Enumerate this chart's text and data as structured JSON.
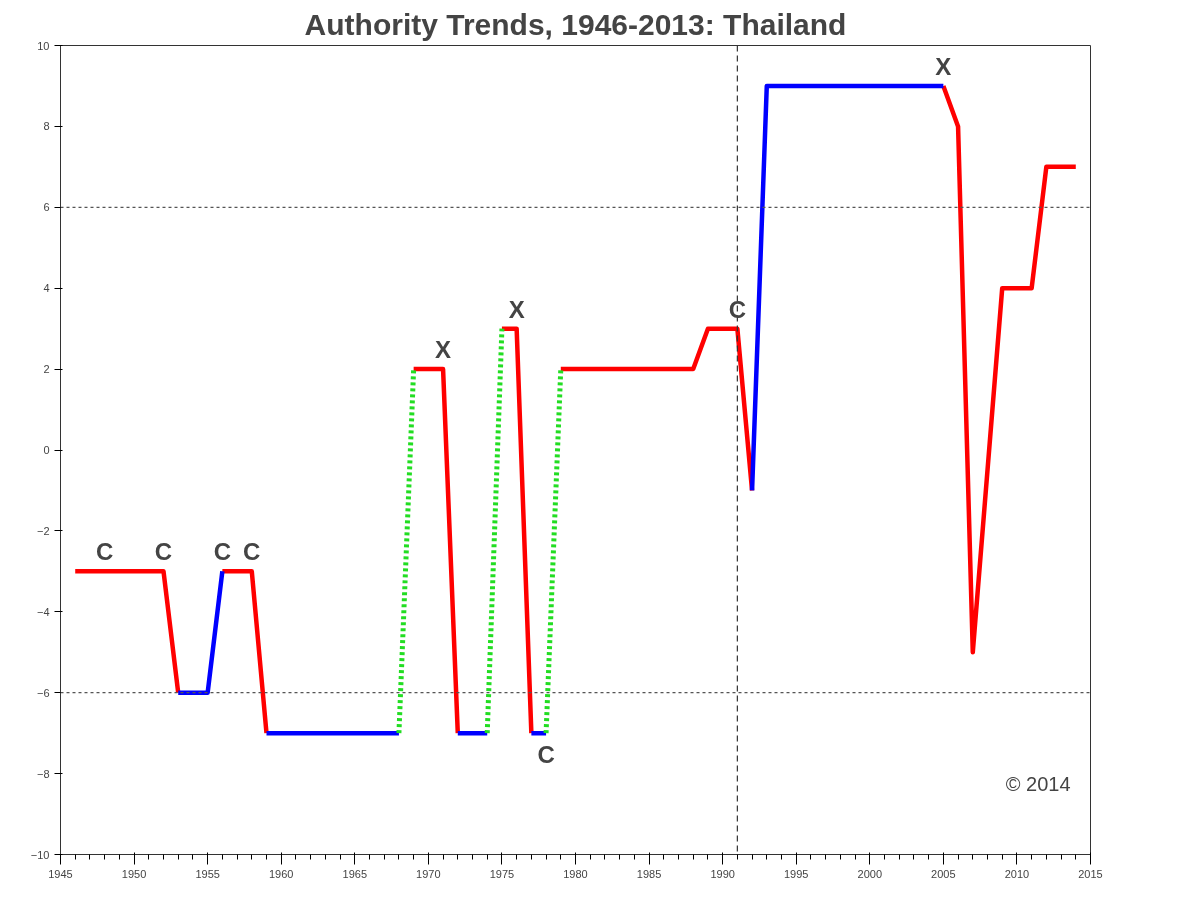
{
  "chart_data": {
    "type": "line",
    "title": "Authority Trends, 1946-2013: Thailand",
    "xlim": [
      1945,
      2015
    ],
    "xticks": [
      1945,
      1950,
      1955,
      1960,
      1965,
      1970,
      1975,
      1980,
      1985,
      1990,
      1995,
      2000,
      2005,
      2010,
      2015
    ],
    "ylim": [
      -10,
      10
    ],
    "yticks": [
      -10,
      -8,
      -6,
      -4,
      -2,
      0,
      2,
      4,
      6,
      8,
      10
    ],
    "series": [
      {
        "color": "#ff0000",
        "line_style": "solid",
        "x": [
          1946,
          1952,
          1953,
          null,
          1956,
          1958,
          1959,
          null,
          1969,
          1971,
          1972,
          null,
          1975,
          1976,
          1977,
          null,
          1979,
          1988,
          1989,
          1991,
          1992,
          null,
          2005,
          2006,
          2007,
          2009,
          2011,
          2012,
          2014
        ],
        "values": [
          -3,
          -3,
          -6,
          null,
          -3,
          -3,
          -7,
          null,
          2,
          2,
          -7,
          null,
          3,
          3,
          -7,
          null,
          2,
          2,
          3,
          3,
          -1,
          null,
          9,
          8,
          -5,
          4,
          4,
          7,
          7
        ]
      },
      {
        "color": "#0000ff",
        "line_style": "solid",
        "x": [
          1953,
          1955,
          1956,
          null,
          1959,
          1968,
          null,
          1972,
          1974,
          null,
          1977,
          1978,
          null,
          1992,
          1993,
          2005
        ],
        "values": [
          -6,
          -6,
          -3,
          null,
          -7,
          -7,
          null,
          -7,
          -7,
          null,
          -7,
          -7,
          null,
          -1,
          9,
          9
        ]
      },
      {
        "color": "#22dd22",
        "line_style": "dotted",
        "x": [
          1968,
          1969,
          null,
          1974,
          1975,
          null,
          1978,
          1979
        ],
        "values": [
          -7,
          2,
          null,
          -7,
          3,
          null,
          -7,
          2
        ]
      }
    ],
    "ref_lines": [
      {
        "axis": "y",
        "value": 6,
        "line_style": "dotted",
        "color": "#555555"
      },
      {
        "axis": "y",
        "value": -6,
        "line_style": "dotted",
        "color": "#555555"
      },
      {
        "axis": "x",
        "value": 1991,
        "line_style": "dashed",
        "color": "#333333"
      }
    ],
    "annotations": [
      {
        "text": "C",
        "x": 1948,
        "y": -3
      },
      {
        "text": "C",
        "x": 1952,
        "y": -3
      },
      {
        "text": "C",
        "x": 1956,
        "y": -3
      },
      {
        "text": "C",
        "x": 1958,
        "y": -3
      },
      {
        "text": "X",
        "x": 1971,
        "y": 2
      },
      {
        "text": "X",
        "x": 1976,
        "y": 3
      },
      {
        "text": "C",
        "x": 1978,
        "y": -7
      },
      {
        "text": "C",
        "x": 1991,
        "y": 3
      },
      {
        "text": "X",
        "x": 2005,
        "y": 9
      },
      "© 2014"
    ]
  }
}
